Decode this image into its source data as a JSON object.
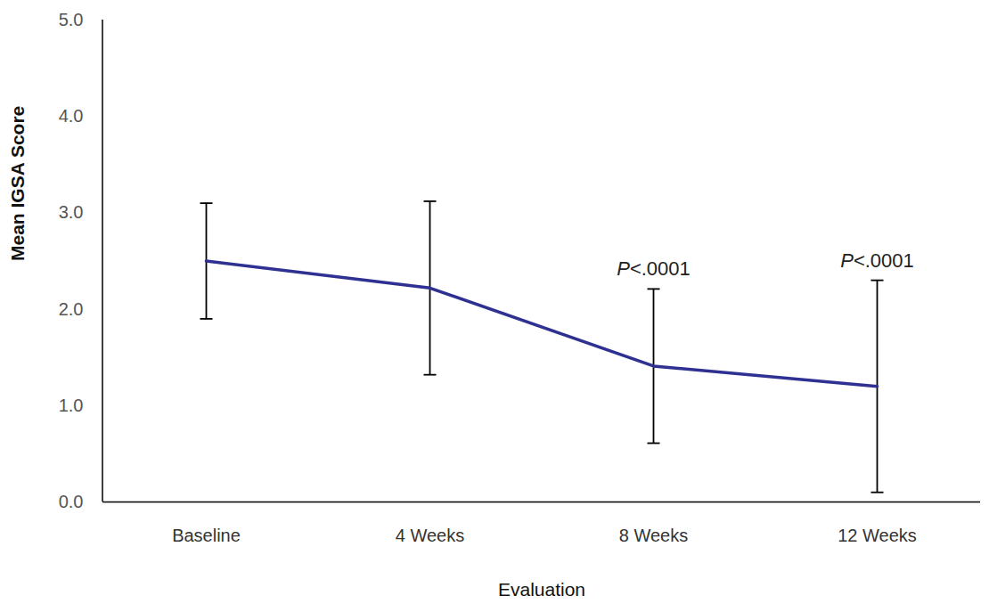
{
  "chart_data": {
    "type": "line",
    "x_label": "Evaluation",
    "y_label": "Mean IGSA Score",
    "categories": [
      "Baseline",
      "4 Weeks",
      "8 Weeks",
      "12 Weeks"
    ],
    "values": [
      2.5,
      2.22,
      1.41,
      1.2
    ],
    "errors": [
      0.6,
      0.9,
      0.8,
      1.1
    ],
    "annotations": [
      null,
      null,
      "P<.0001",
      "P<.0001"
    ],
    "color": "#2e3192",
    "ylim": [
      0,
      5
    ],
    "yticks": [
      0,
      1,
      2,
      3,
      4,
      5
    ],
    "grid": false
  }
}
